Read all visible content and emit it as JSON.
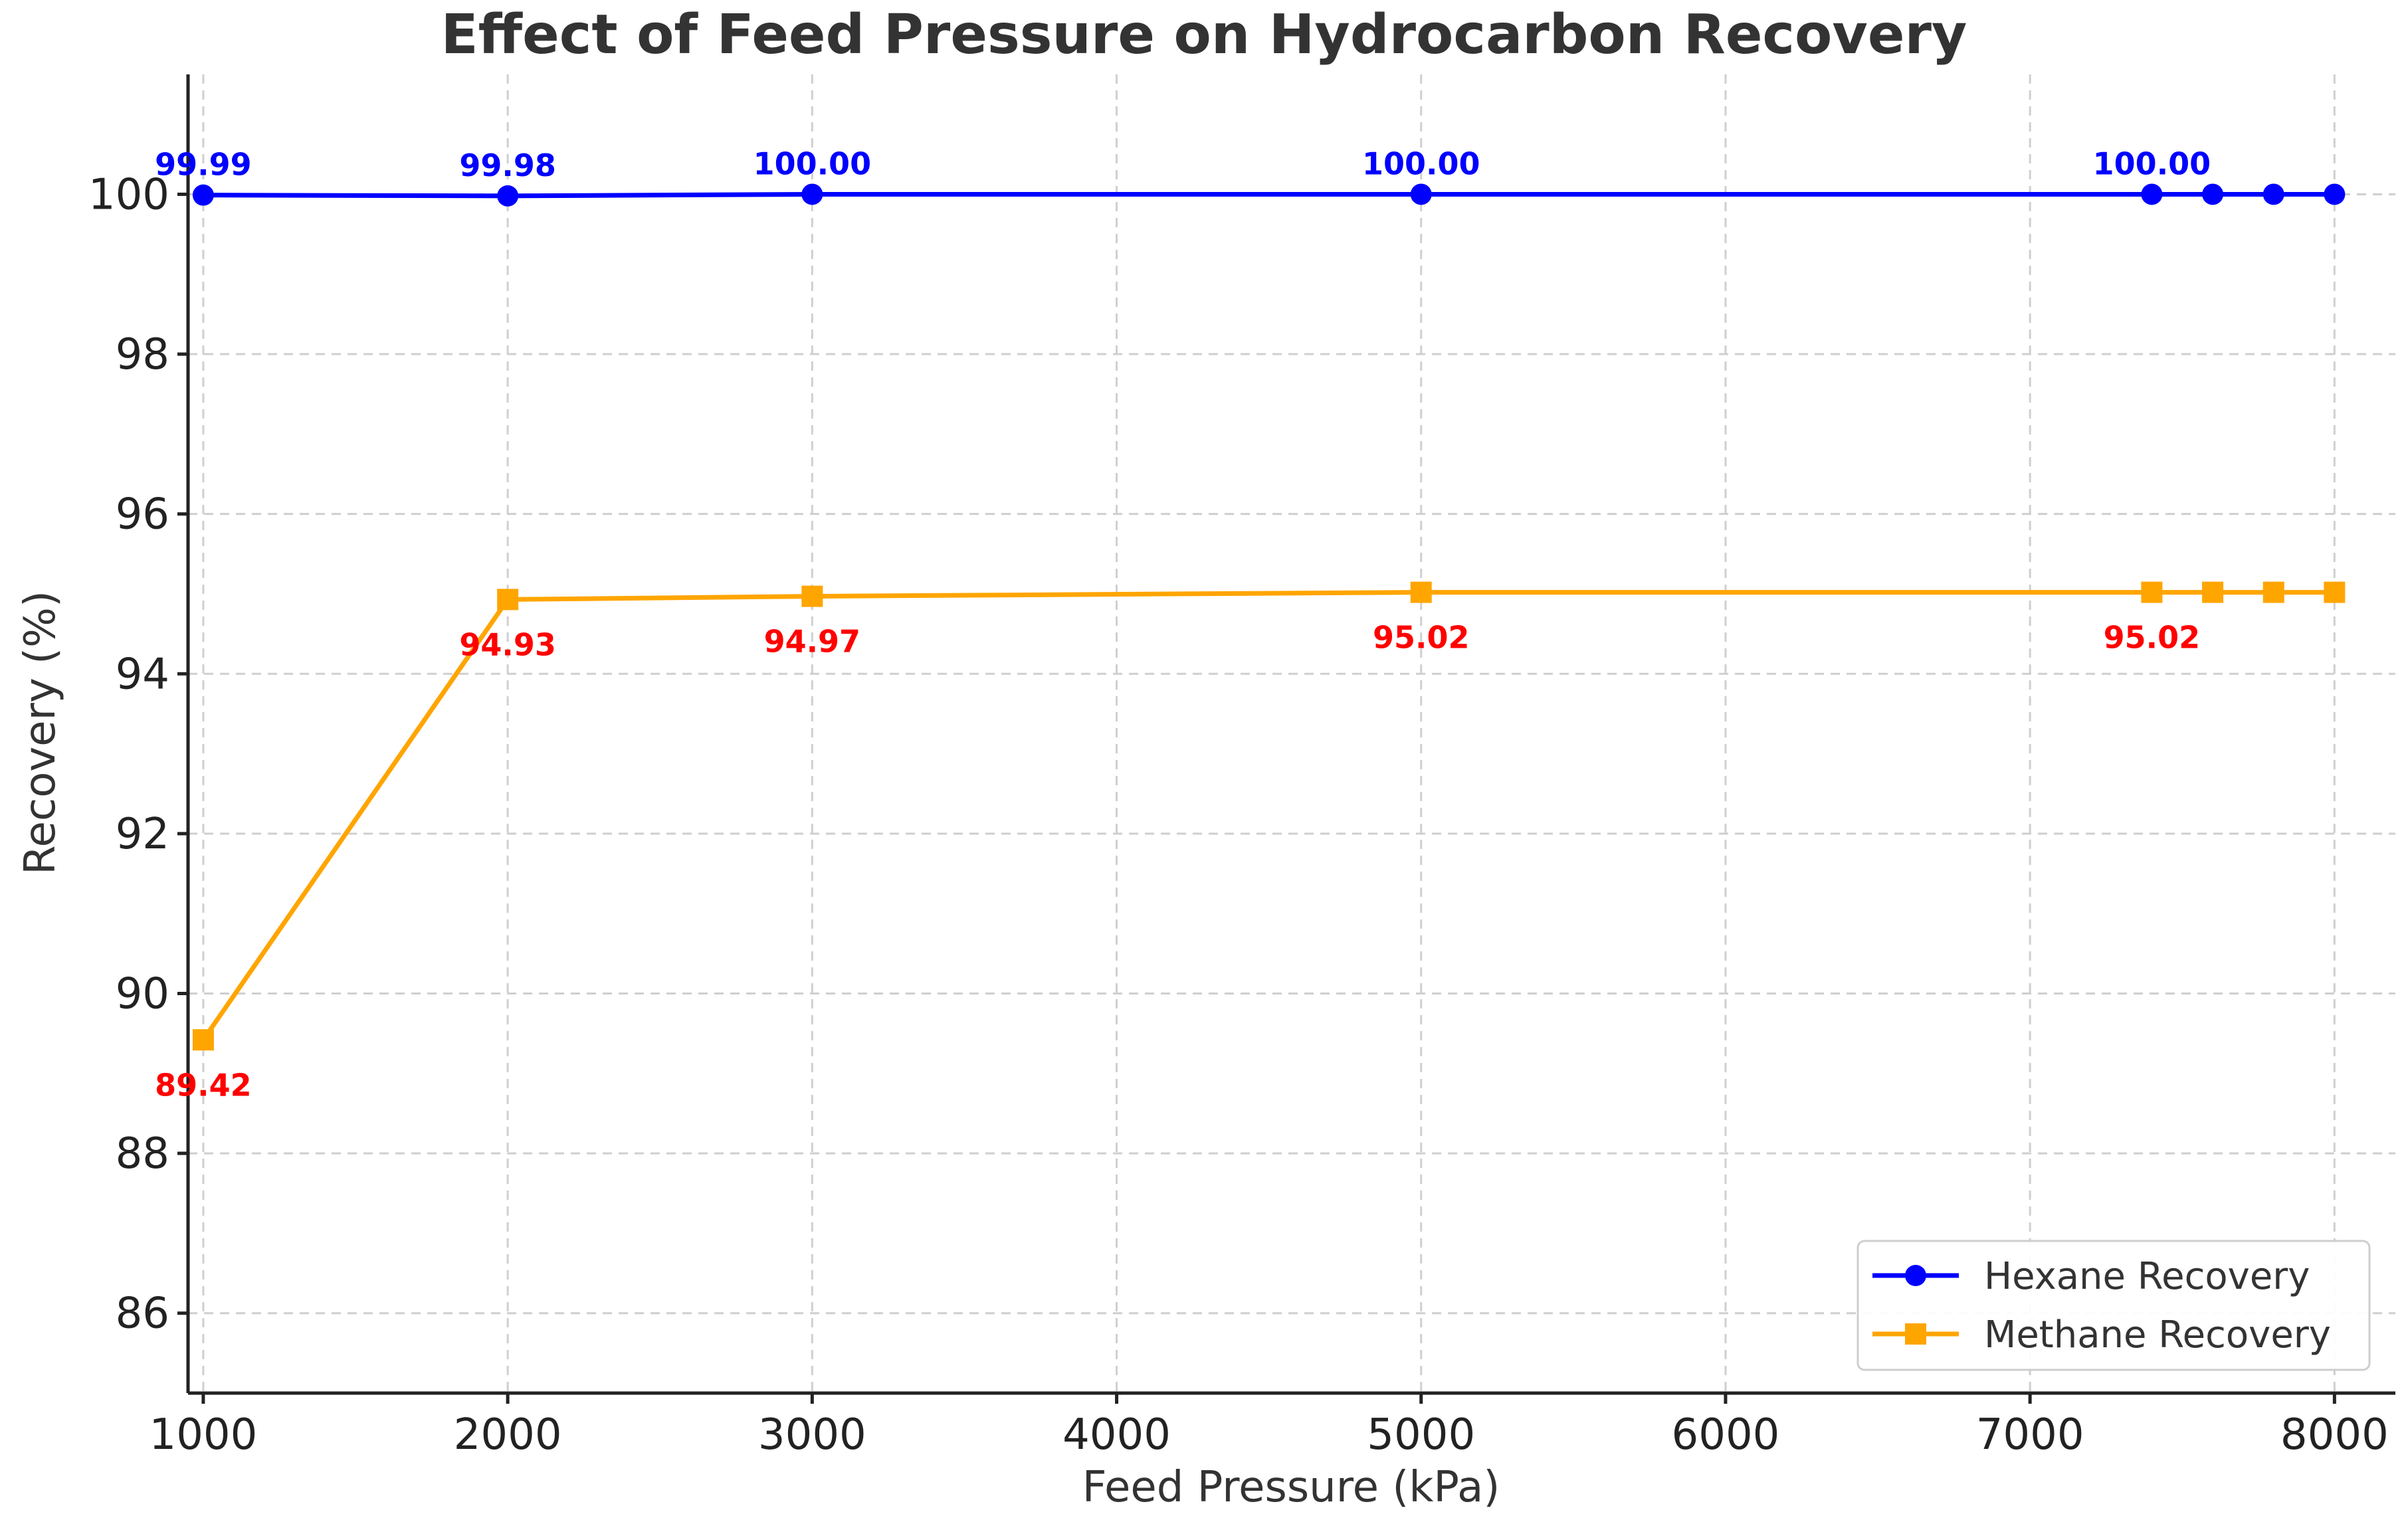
{
  "chart_data": {
    "type": "line",
    "title": "Effect of Feed Pressure on Hydrocarbon Recovery",
    "xlabel": "Feed Pressure (kPa)",
    "ylabel": "Recovery (%)",
    "xlim": [
      950,
      8200
    ],
    "ylim": [
      85,
      101.5
    ],
    "xticks": [
      1000,
      2000,
      3000,
      4000,
      5000,
      6000,
      7000,
      8000
    ],
    "yticks": [
      86,
      88,
      90,
      92,
      94,
      96,
      98,
      100
    ],
    "grid": true,
    "legend_position": "lower-right",
    "x": [
      1000,
      2000,
      3000,
      5000,
      7400,
      7600,
      7800,
      8000
    ],
    "series": [
      {
        "name": "Hexane Recovery",
        "color": "#0000ff",
        "marker": "circle",
        "values": [
          99.99,
          99.98,
          100.0,
          100.0,
          100.0,
          100.0,
          100.0,
          100.0
        ],
        "labels": [
          "99.99",
          "99.98",
          "100.00",
          "100.00",
          "100.00",
          "",
          "",
          ""
        ],
        "label_color": "#0000ff",
        "label_side": "above"
      },
      {
        "name": "Methane Recovery",
        "color": "#ffa500",
        "marker": "square",
        "values": [
          89.42,
          94.93,
          94.97,
          95.02,
          95.02,
          95.02,
          95.02,
          95.02
        ],
        "labels": [
          "89.42",
          "94.93",
          "94.97",
          "95.02",
          "95.02",
          "",
          "",
          ""
        ],
        "label_color": "#ff0000",
        "label_side": "below"
      }
    ]
  }
}
